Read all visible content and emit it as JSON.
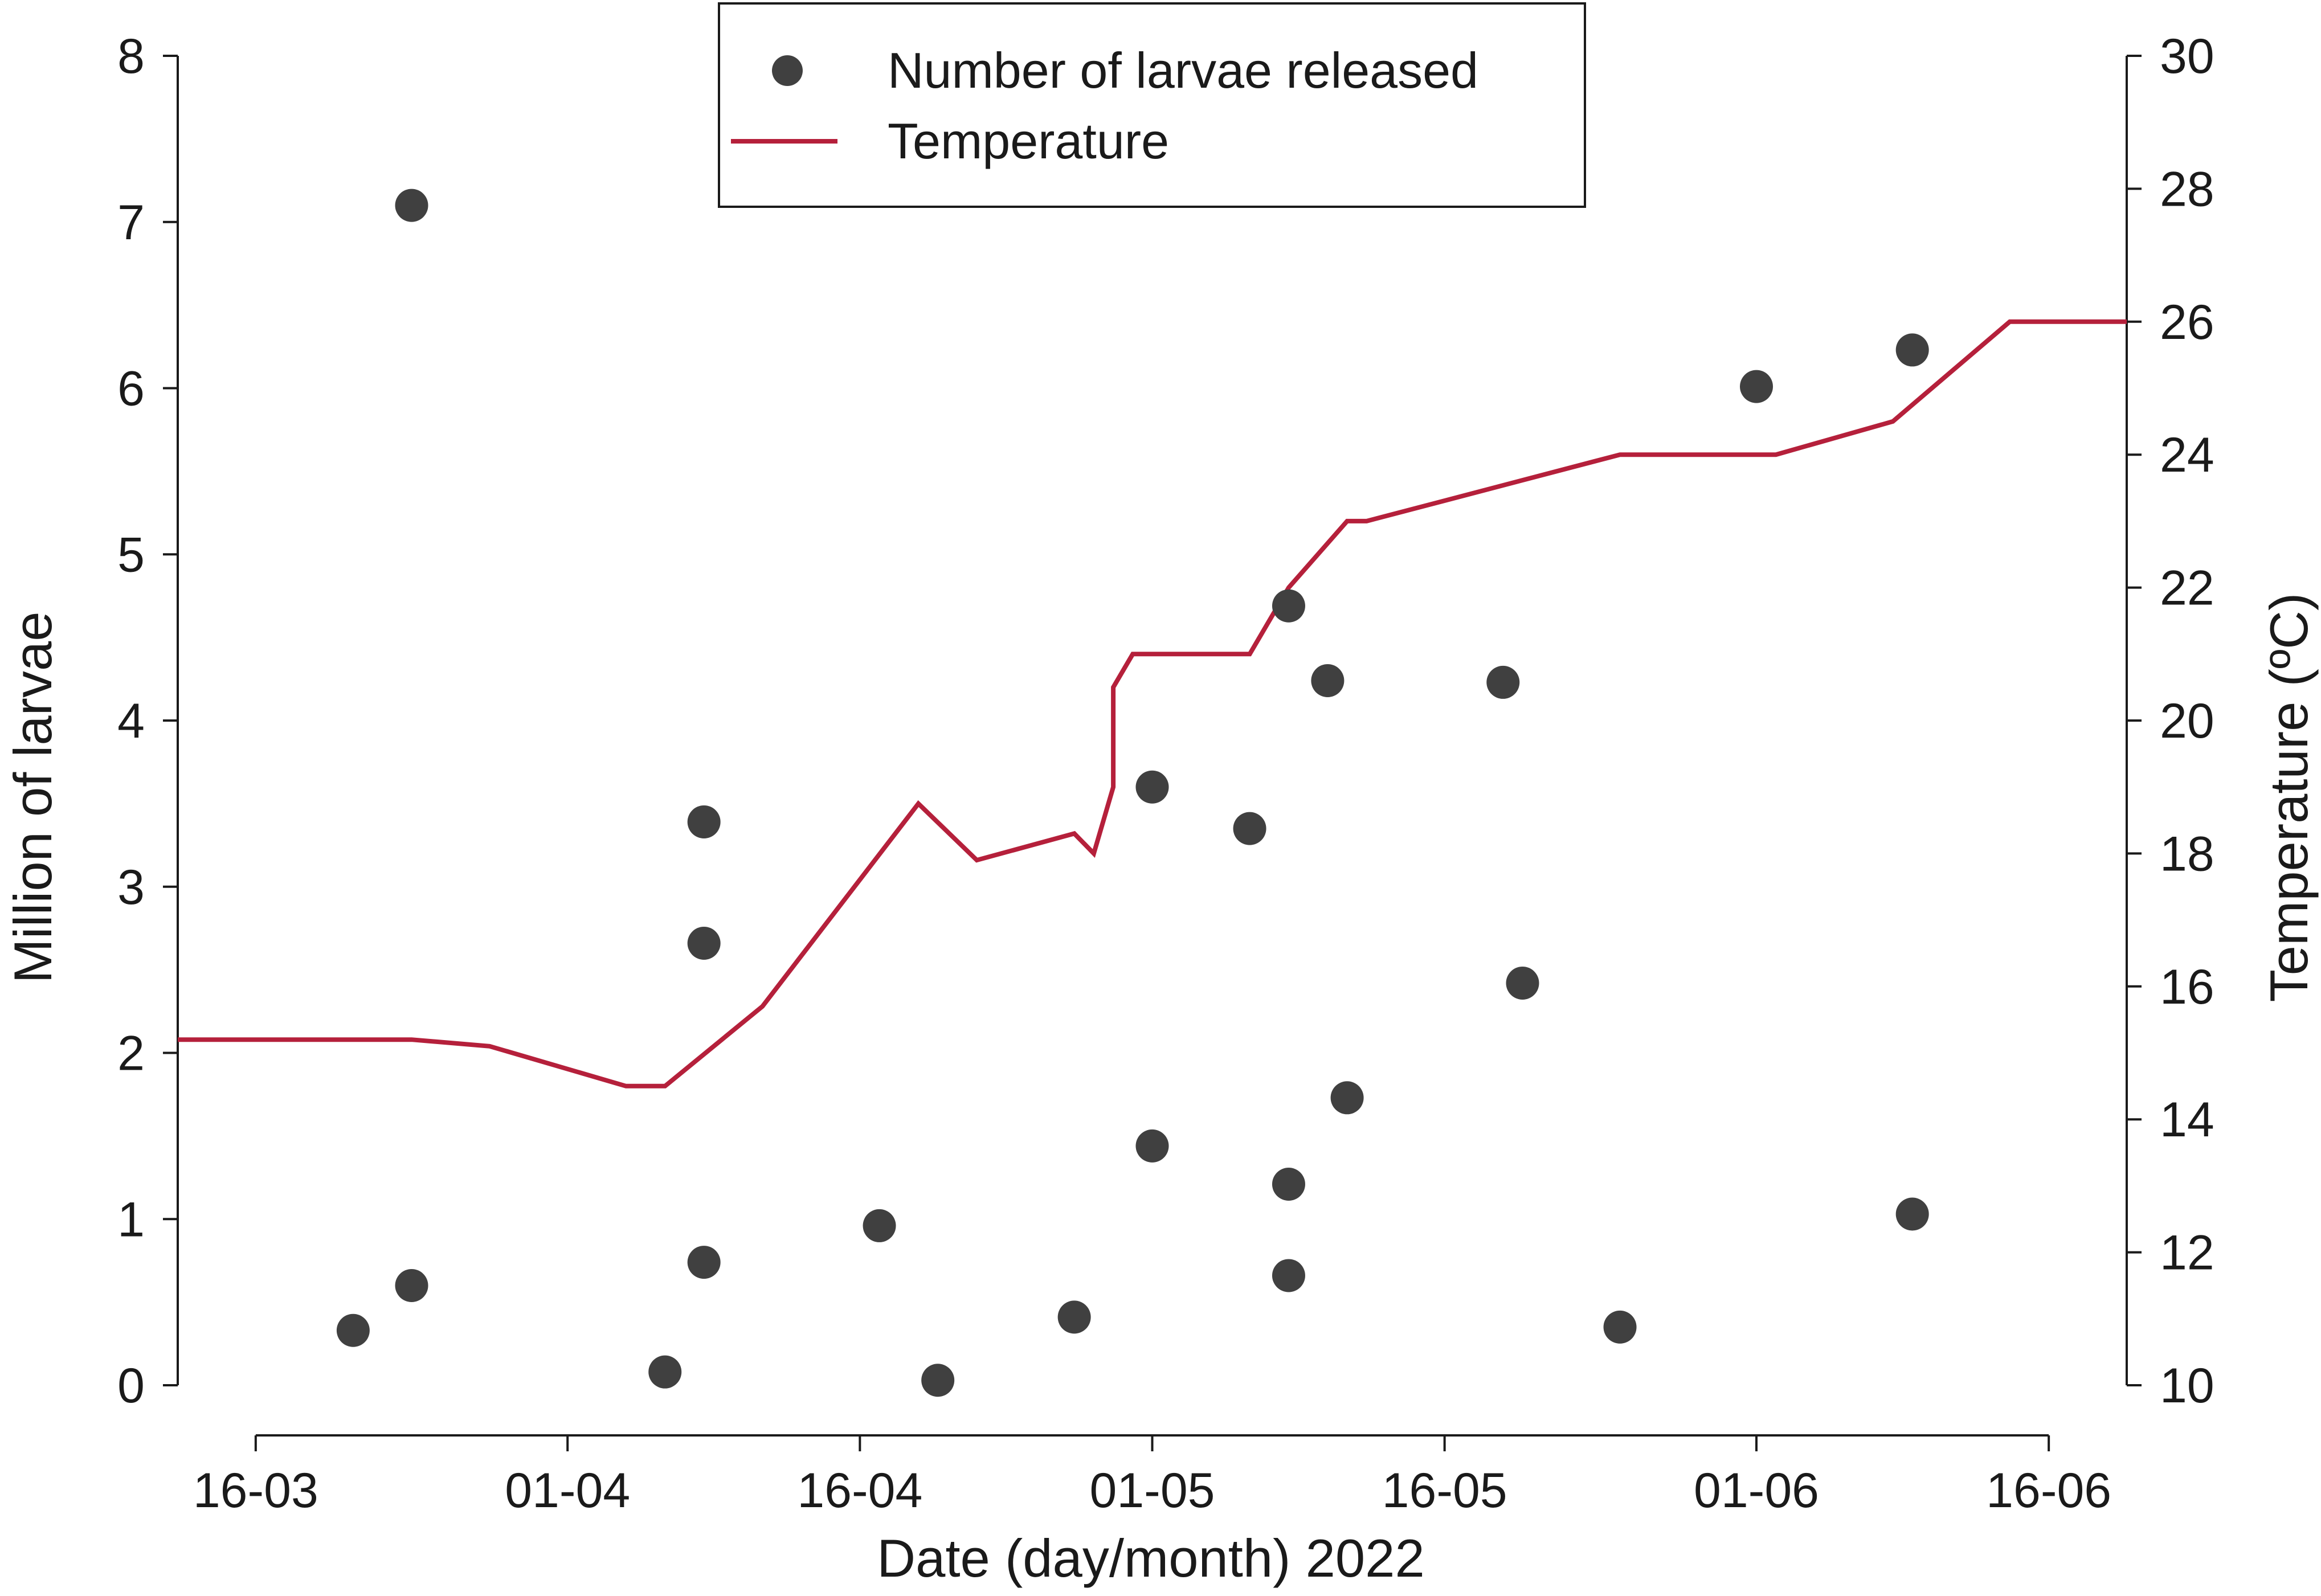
{
  "chart_data": {
    "type": "scatter",
    "xlabel": "Date (day/month) 2022",
    "ylabel": "Million of larvae",
    "y2label": "Temperature (ºC)",
    "x_tick_labels": [
      "16-03",
      "01-04",
      "16-04",
      "01-05",
      "16-05",
      "01-06",
      "16-06"
    ],
    "x_tick_dates": [
      "2022-03-16",
      "2022-04-01",
      "2022-04-16",
      "2022-05-01",
      "2022-05-16",
      "2022-06-01",
      "2022-06-16"
    ],
    "xlim": [
      "2022-03-12",
      "2022-06-20"
    ],
    "ylim": [
      0,
      8
    ],
    "y_ticks": [
      0,
      1,
      2,
      3,
      4,
      5,
      6,
      7,
      8
    ],
    "y2lim": [
      10,
      30
    ],
    "y2_ticks": [
      10,
      12,
      14,
      16,
      18,
      20,
      22,
      24,
      26,
      28,
      30
    ],
    "legend_position": "top-center",
    "grid": false,
    "series": [
      {
        "name": "Number of larvae released",
        "type": "scatter",
        "axis": "left",
        "color": "#404040",
        "points": [
          {
            "x": "2022-03-21",
            "y": 0.33
          },
          {
            "x": "2022-03-24",
            "y": 7.1
          },
          {
            "x": "2022-03-24",
            "y": 0.6
          },
          {
            "x": "2022-04-06",
            "y": 0.08
          },
          {
            "x": "2022-04-08",
            "y": 3.39
          },
          {
            "x": "2022-04-08",
            "y": 2.66
          },
          {
            "x": "2022-04-08",
            "y": 0.74
          },
          {
            "x": "2022-04-17",
            "y": 0.96
          },
          {
            "x": "2022-04-20",
            "y": 0.03
          },
          {
            "x": "2022-04-27",
            "y": 0.41
          },
          {
            "x": "2022-05-01",
            "y": 3.6
          },
          {
            "x": "2022-05-01",
            "y": 1.44
          },
          {
            "x": "2022-05-06",
            "y": 3.35
          },
          {
            "x": "2022-05-08",
            "y": 4.69
          },
          {
            "x": "2022-05-08",
            "y": 1.21
          },
          {
            "x": "2022-05-08",
            "y": 0.66
          },
          {
            "x": "2022-05-10",
            "y": 4.24
          },
          {
            "x": "2022-05-11",
            "y": 1.73
          },
          {
            "x": "2022-05-19",
            "y": 4.23
          },
          {
            "x": "2022-05-20",
            "y": 2.42
          },
          {
            "x": "2022-05-25",
            "y": 0.35
          },
          {
            "x": "2022-06-01",
            "y": 6.01
          },
          {
            "x": "2022-06-09",
            "y": 6.23
          },
          {
            "x": "2022-06-09",
            "y": 1.03
          }
        ]
      },
      {
        "name": "Temperature",
        "type": "line",
        "axis": "right",
        "color": "#b5203b",
        "points": [
          {
            "x": "2022-03-12",
            "y": 15.2
          },
          {
            "x": "2022-03-24",
            "y": 15.2
          },
          {
            "x": "2022-03-28",
            "y": 15.1
          },
          {
            "x": "2022-04-04",
            "y": 14.5
          },
          {
            "x": "2022-04-06",
            "y": 14.5
          },
          {
            "x": "2022-04-11",
            "y": 15.7
          },
          {
            "x": "2022-04-19",
            "y": 18.75
          },
          {
            "x": "2022-04-22",
            "y": 17.9
          },
          {
            "x": "2022-04-27",
            "y": 18.3
          },
          {
            "x": "2022-04-28",
            "y": 18.0
          },
          {
            "x": "2022-04-29",
            "y": 19.0
          },
          {
            "x": "2022-04-29",
            "y": 20.5
          },
          {
            "x": "2022-04-30",
            "y": 21.0
          },
          {
            "x": "2022-05-06",
            "y": 21.0
          },
          {
            "x": "2022-05-08",
            "y": 22.0
          },
          {
            "x": "2022-05-11",
            "y": 23.0
          },
          {
            "x": "2022-05-12",
            "y": 23.0
          },
          {
            "x": "2022-05-25",
            "y": 24.0
          },
          {
            "x": "2022-06-02",
            "y": 24.0
          },
          {
            "x": "2022-06-08",
            "y": 24.5
          },
          {
            "x": "2022-06-14",
            "y": 26.0
          },
          {
            "x": "2022-06-20",
            "y": 26.0
          }
        ]
      }
    ]
  }
}
